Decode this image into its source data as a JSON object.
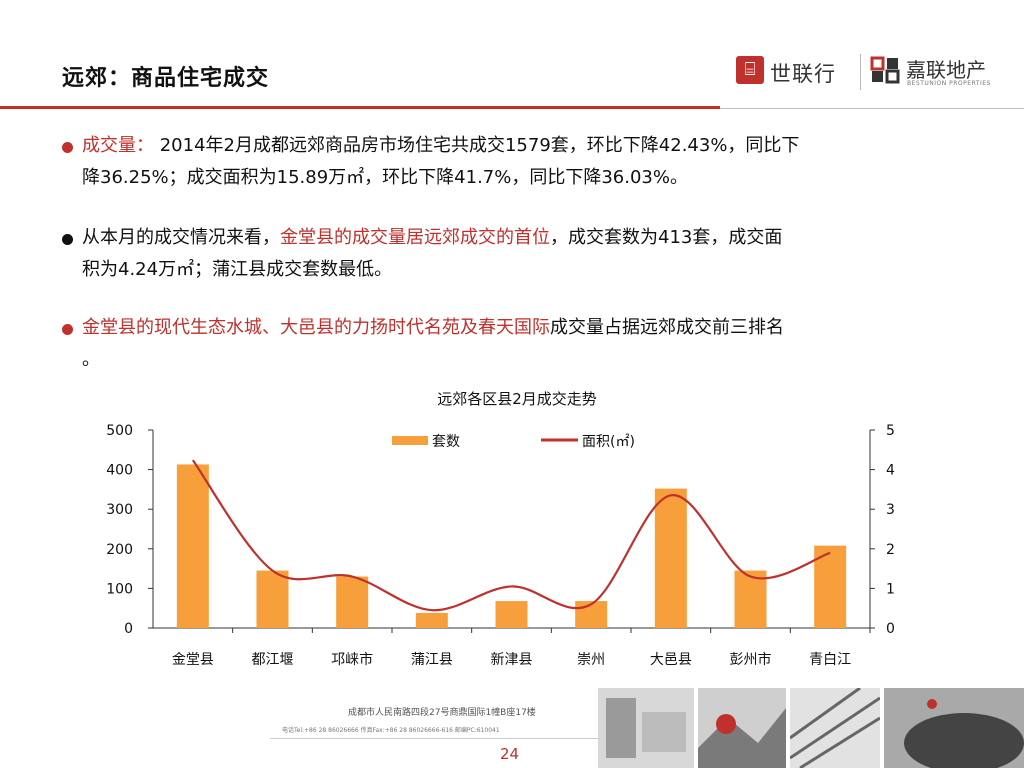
{
  "slide": {
    "title": "远郊：商品住宅成交",
    "page_number": "24"
  },
  "logos": {
    "slh_mark": "⌸",
    "slh": "世联行",
    "bestunion": "嘉联地产",
    "bestunion_sub": "BESTUNION PROPERTIES"
  },
  "bullets": [
    {
      "label": "成交量：",
      "line1": " 2014年2月成都远郊商品房市场住宅共成交1579套，环比下降42.43%，同比下",
      "line2": "降36.25%；成交面积为15.89万㎡，环比下降41.7%，同比下降36.03%。"
    },
    {
      "pre": "从本月的成交情况来看，",
      "highlight": "金堂县的成交量居远郊成交的首位",
      "post": "，成交套数为413套，成交面",
      "line2": "积为4.24万㎡；蒲江县成交套数最低。"
    },
    {
      "highlight": "金堂县的现代生态水城、大邑县的力扬时代名苑及春天国际",
      "post": "成交量占据远郊成交前三排名",
      "line2": "。"
    }
  ],
  "footer": {
    "address": "成都市人民南路四段27号商鼎国际1幢B座17楼",
    "contact": "电话Tel:+86 28 86026666  传真Fax:+86 28 86026666-616  邮编PC:610041"
  },
  "colors": {
    "accent_red": "#c0302c",
    "bar_orange": "#f7a03b",
    "line_red": "#c0302c"
  },
  "chart_data": {
    "type": "bar",
    "title": "远郊各区县2月成交走势",
    "categories": [
      "金堂县",
      "都江堰",
      "邛崃市",
      "蒲江县",
      "新津县",
      "崇州",
      "大邑县",
      "彭州市",
      "青白江"
    ],
    "series": [
      {
        "name": "套数",
        "type": "bar",
        "axis": "left",
        "values": [
          413,
          145,
          130,
          38,
          68,
          68,
          352,
          145,
          208
        ]
      },
      {
        "name": "面积(㎡)",
        "type": "line",
        "axis": "right",
        "values": [
          4.24,
          1.45,
          1.3,
          0.45,
          1.05,
          0.6,
          3.35,
          1.3,
          1.9
        ]
      }
    ],
    "ylim_left": [
      0,
      500
    ],
    "yticks_left": [
      0,
      100,
      200,
      300,
      400,
      500
    ],
    "ylim_right": [
      0,
      5
    ],
    "yticks_right": [
      0,
      1,
      2,
      3,
      4,
      5
    ],
    "legend_position": "top",
    "grid": false
  }
}
